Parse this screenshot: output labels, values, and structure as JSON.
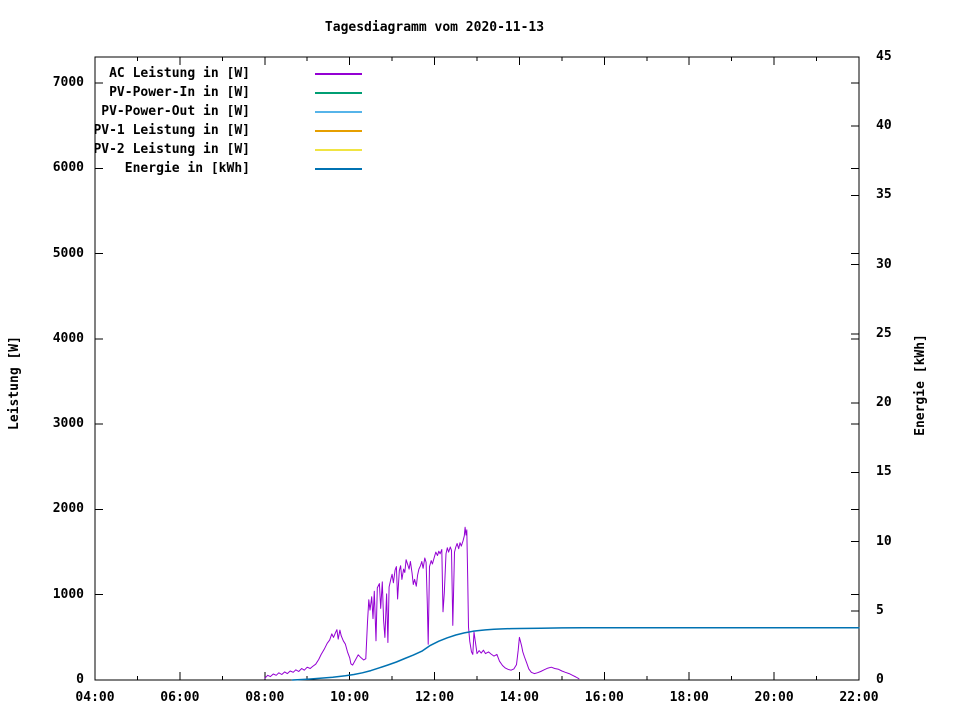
{
  "chart_data": {
    "type": "line",
    "title": "Tagesdiagramm vom 2020-11-13",
    "grid": "off",
    "legend_position": "top-left-inside",
    "x_axis": {
      "unit": "time",
      "range_hours": [
        4,
        22
      ],
      "major_ticks": [
        {
          "t": 4,
          "label": "04:00"
        },
        {
          "t": 6,
          "label": "06:00"
        },
        {
          "t": 8,
          "label": "08:00"
        },
        {
          "t": 10,
          "label": "10:00"
        },
        {
          "t": 12,
          "label": "12:00"
        },
        {
          "t": 14,
          "label": "14:00"
        },
        {
          "t": 16,
          "label": "16:00"
        },
        {
          "t": 18,
          "label": "18:00"
        },
        {
          "t": 20,
          "label": "20:00"
        },
        {
          "t": 22,
          "label": "22:00"
        }
      ],
      "minor_tick_hours": [
        5,
        7,
        9,
        11,
        13,
        15,
        17,
        19,
        21
      ]
    },
    "y_left": {
      "label": "Leistung [W]",
      "range": [
        0,
        7305
      ],
      "ticks": [
        {
          "v": 0,
          "label": "0"
        },
        {
          "v": 1000,
          "label": "1000"
        },
        {
          "v": 2000,
          "label": "2000"
        },
        {
          "v": 3000,
          "label": "3000"
        },
        {
          "v": 4000,
          "label": "4000"
        },
        {
          "v": 5000,
          "label": "5000"
        },
        {
          "v": 6000,
          "label": "6000"
        },
        {
          "v": 7000,
          "label": "7000"
        }
      ]
    },
    "y_right": {
      "label": "Energie [kWh]",
      "range": [
        0,
        45
      ],
      "ticks": [
        {
          "v": 0,
          "label": "0"
        },
        {
          "v": 5,
          "label": "5"
        },
        {
          "v": 10,
          "label": "10"
        },
        {
          "v": 15,
          "label": "15"
        },
        {
          "v": 20,
          "label": "20"
        },
        {
          "v": 25,
          "label": "25"
        },
        {
          "v": 30,
          "label": "30"
        },
        {
          "v": 35,
          "label": "35"
        },
        {
          "v": 40,
          "label": "40"
        },
        {
          "v": 45,
          "label": "45"
        }
      ]
    },
    "series": [
      {
        "name": "AC Leistung in [W]",
        "color": "#9400d3",
        "axis": "left",
        "width": 1,
        "points": [
          [
            8.0,
            20
          ],
          [
            8.07,
            55
          ],
          [
            8.13,
            40
          ],
          [
            8.2,
            70
          ],
          [
            8.27,
            55
          ],
          [
            8.33,
            85
          ],
          [
            8.4,
            65
          ],
          [
            8.47,
            95
          ],
          [
            8.53,
            75
          ],
          [
            8.6,
            105
          ],
          [
            8.67,
            90
          ],
          [
            8.73,
            120
          ],
          [
            8.8,
            100
          ],
          [
            8.87,
            135
          ],
          [
            8.93,
            115
          ],
          [
            9.0,
            150
          ],
          [
            9.07,
            135
          ],
          [
            9.13,
            160
          ],
          [
            9.2,
            185
          ],
          [
            9.27,
            240
          ],
          [
            9.33,
            300
          ],
          [
            9.4,
            360
          ],
          [
            9.47,
            430
          ],
          [
            9.53,
            470
          ],
          [
            9.58,
            540
          ],
          [
            9.62,
            500
          ],
          [
            9.67,
            560
          ],
          [
            9.7,
            590
          ],
          [
            9.73,
            480
          ],
          [
            9.77,
            585
          ],
          [
            9.8,
            520
          ],
          [
            9.85,
            460
          ],
          [
            9.9,
            420
          ],
          [
            9.95,
            330
          ],
          [
            10.0,
            260
          ],
          [
            10.03,
            190
          ],
          [
            10.07,
            175
          ],
          [
            10.13,
            230
          ],
          [
            10.2,
            295
          ],
          [
            10.27,
            260
          ],
          [
            10.33,
            235
          ],
          [
            10.38,
            250
          ],
          [
            10.42,
            680
          ],
          [
            10.45,
            940
          ],
          [
            10.48,
            820
          ],
          [
            10.52,
            975
          ],
          [
            10.55,
            720
          ],
          [
            10.58,
            1040
          ],
          [
            10.62,
            460
          ],
          [
            10.65,
            1080
          ],
          [
            10.7,
            1130
          ],
          [
            10.73,
            840
          ],
          [
            10.77,
            1150
          ],
          [
            10.8,
            700
          ],
          [
            10.83,
            500
          ],
          [
            10.87,
            1010
          ],
          [
            10.9,
            440
          ],
          [
            10.93,
            1090
          ],
          [
            10.97,
            1180
          ],
          [
            11.0,
            1240
          ],
          [
            11.03,
            1140
          ],
          [
            11.07,
            1290
          ],
          [
            11.1,
            1330
          ],
          [
            11.13,
            950
          ],
          [
            11.17,
            1280
          ],
          [
            11.2,
            1340
          ],
          [
            11.23,
            1180
          ],
          [
            11.27,
            1300
          ],
          [
            11.3,
            1260
          ],
          [
            11.33,
            1410
          ],
          [
            11.37,
            1350
          ],
          [
            11.4,
            1300
          ],
          [
            11.43,
            1390
          ],
          [
            11.47,
            1250
          ],
          [
            11.5,
            1120
          ],
          [
            11.53,
            1180
          ],
          [
            11.57,
            1100
          ],
          [
            11.6,
            1230
          ],
          [
            11.63,
            1300
          ],
          [
            11.67,
            1340
          ],
          [
            11.7,
            1390
          ],
          [
            11.73,
            1310
          ],
          [
            11.77,
            1430
          ],
          [
            11.8,
            1380
          ],
          [
            11.83,
            900
          ],
          [
            11.85,
            420
          ],
          [
            11.88,
            1330
          ],
          [
            11.92,
            1400
          ],
          [
            11.95,
            1360
          ],
          [
            12.0,
            1450
          ],
          [
            12.03,
            1500
          ],
          [
            12.07,
            1460
          ],
          [
            12.1,
            1510
          ],
          [
            12.13,
            1480
          ],
          [
            12.17,
            1530
          ],
          [
            12.2,
            800
          ],
          [
            12.23,
            1020
          ],
          [
            12.27,
            1480
          ],
          [
            12.3,
            1550
          ],
          [
            12.33,
            1500
          ],
          [
            12.37,
            1560
          ],
          [
            12.4,
            1520
          ],
          [
            12.43,
            640
          ],
          [
            12.47,
            1500
          ],
          [
            12.5,
            1560
          ],
          [
            12.53,
            1600
          ],
          [
            12.57,
            1540
          ],
          [
            12.6,
            1610
          ],
          [
            12.63,
            1570
          ],
          [
            12.67,
            1630
          ],
          [
            12.7,
            1690
          ],
          [
            12.72,
            1790
          ],
          [
            12.74,
            1700
          ],
          [
            12.76,
            1760
          ],
          [
            12.78,
            1200
          ],
          [
            12.8,
            620
          ],
          [
            12.83,
            450
          ],
          [
            12.87,
            330
          ],
          [
            12.9,
            300
          ],
          [
            12.93,
            560
          ],
          [
            12.97,
            420
          ],
          [
            13.0,
            310
          ],
          [
            13.05,
            345
          ],
          [
            13.1,
            315
          ],
          [
            13.15,
            350
          ],
          [
            13.2,
            310
          ],
          [
            13.27,
            330
          ],
          [
            13.33,
            305
          ],
          [
            13.4,
            280
          ],
          [
            13.47,
            300
          ],
          [
            13.53,
            220
          ],
          [
            13.6,
            170
          ],
          [
            13.67,
            140
          ],
          [
            13.73,
            125
          ],
          [
            13.8,
            115
          ],
          [
            13.87,
            130
          ],
          [
            13.93,
            180
          ],
          [
            13.97,
            350
          ],
          [
            14.0,
            500
          ],
          [
            14.02,
            460
          ],
          [
            14.05,
            400
          ],
          [
            14.08,
            330
          ],
          [
            14.12,
            270
          ],
          [
            14.17,
            200
          ],
          [
            14.22,
            130
          ],
          [
            14.28,
            90
          ],
          [
            14.35,
            75
          ],
          [
            14.42,
            85
          ],
          [
            14.5,
            100
          ],
          [
            14.58,
            120
          ],
          [
            14.67,
            140
          ],
          [
            14.75,
            150
          ],
          [
            14.83,
            135
          ],
          [
            14.92,
            125
          ],
          [
            15.0,
            105
          ],
          [
            15.08,
            90
          ],
          [
            15.17,
            75
          ],
          [
            15.25,
            55
          ],
          [
            15.33,
            35
          ],
          [
            15.4,
            15
          ]
        ]
      },
      {
        "name": "PV-Power-In in [W]",
        "color": "#009e73",
        "axis": "left",
        "width": 1,
        "points": []
      },
      {
        "name": "PV-Power-Out in [W]",
        "color": "#56b4e9",
        "axis": "left",
        "width": 1,
        "points": []
      },
      {
        "name": "PV-1 Leistung in [W]",
        "color": "#e69f00",
        "axis": "left",
        "width": 1,
        "points": []
      },
      {
        "name": "PV-2 Leistung in [W]",
        "color": "#f0e442",
        "axis": "left",
        "width": 1,
        "points": []
      },
      {
        "name": "Energie in [kWh]",
        "color": "#0072b2",
        "axis": "right",
        "width": 1.5,
        "points": [
          [
            8.65,
            0.0
          ],
          [
            9.0,
            0.06
          ],
          [
            9.3,
            0.12
          ],
          [
            9.6,
            0.2
          ],
          [
            9.9,
            0.3
          ],
          [
            10.1,
            0.4
          ],
          [
            10.3,
            0.52
          ],
          [
            10.5,
            0.68
          ],
          [
            10.7,
            0.88
          ],
          [
            10.9,
            1.08
          ],
          [
            11.1,
            1.3
          ],
          [
            11.3,
            1.55
          ],
          [
            11.5,
            1.8
          ],
          [
            11.7,
            2.08
          ],
          [
            11.9,
            2.5
          ],
          [
            12.1,
            2.8
          ],
          [
            12.3,
            3.05
          ],
          [
            12.5,
            3.25
          ],
          [
            12.7,
            3.4
          ],
          [
            12.8,
            3.46
          ],
          [
            12.9,
            3.52
          ],
          [
            13.0,
            3.56
          ],
          [
            13.2,
            3.62
          ],
          [
            13.4,
            3.66
          ],
          [
            13.6,
            3.69
          ],
          [
            13.8,
            3.71
          ],
          [
            14.0,
            3.72
          ],
          [
            14.5,
            3.74
          ],
          [
            15.0,
            3.76
          ],
          [
            15.5,
            3.77
          ],
          [
            16.0,
            3.78
          ],
          [
            22.0,
            3.78
          ]
        ]
      }
    ]
  }
}
